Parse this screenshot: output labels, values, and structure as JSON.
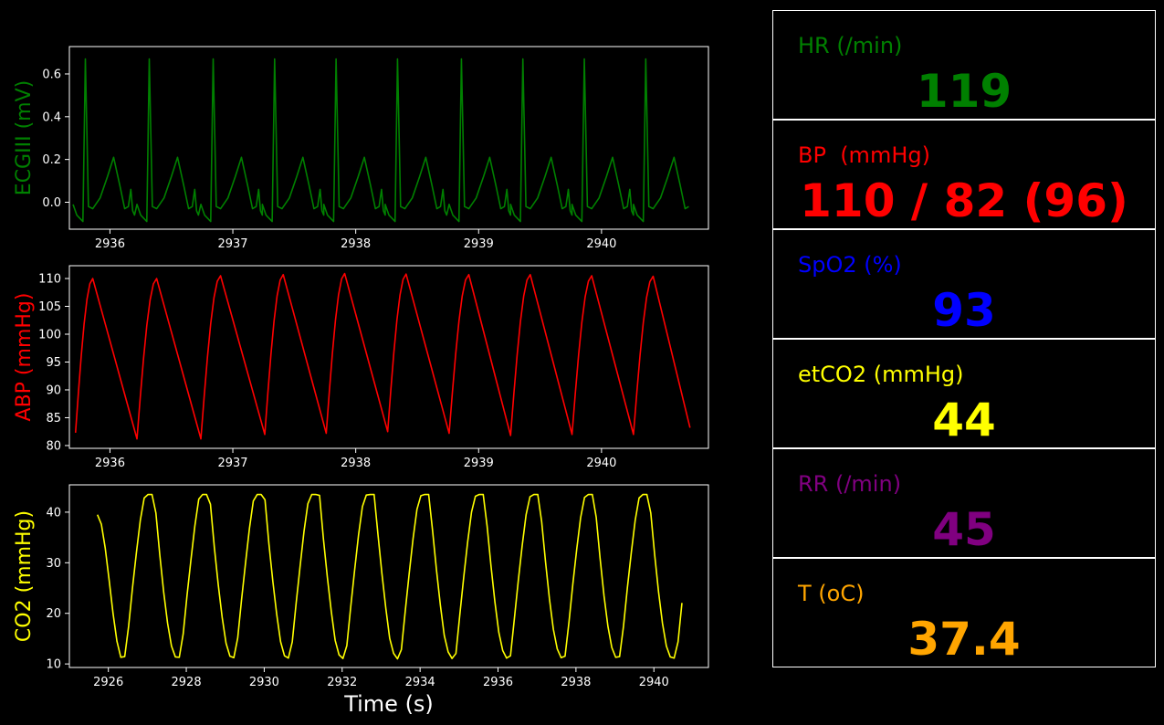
{
  "chart_data": [
    {
      "type": "line",
      "ylabel": "ECGIII (mV)",
      "color": "#008000",
      "xlim": [
        2935.67,
        2940.87
      ],
      "ylim": [
        -0.126,
        0.728
      ],
      "xticks": [
        2936,
        2937,
        2938,
        2939,
        2940
      ],
      "yticks": [
        0.0,
        0.2,
        0.4,
        0.6
      ],
      "beat_onsets": [
        2935.7,
        2936.22,
        2936.74,
        2937.24,
        2937.74,
        2938.24,
        2938.76,
        2939.26,
        2939.76,
        2940.26
      ],
      "beat_period": 0.5,
      "x_end": 2940.72,
      "y_range": [
        -0.09,
        0.67
      ],
      "series": [
        {
          "y": [
            -0.01,
            -0.06,
            -0.09,
            0.67,
            -0.02,
            -0.03,
            0.02,
            0.12,
            0.21,
            0.08,
            -0.03,
            -0.02,
            0.06,
            -0.04,
            -0.06
          ]
        }
      ]
    },
    {
      "type": "line",
      "ylabel": "ABP (mmHg)",
      "color": "#ff0000",
      "xlim": [
        2935.67,
        2940.87
      ],
      "ylim": [
        79.5,
        112.3
      ],
      "xticks": [
        2936,
        2937,
        2938,
        2939,
        2940
      ],
      "yticks": [
        80,
        85,
        90,
        95,
        100,
        105,
        110
      ],
      "peaks_x": [
        2935.86,
        2936.38,
        2936.9,
        2937.41,
        2937.91,
        2938.41,
        2938.92,
        2939.42,
        2939.92,
        2940.42
      ],
      "peaks_y": [
        110,
        110,
        110.5,
        110.7,
        110.9,
        110.8,
        110.7,
        110.7,
        110.5,
        110.4
      ],
      "troughs_x": [
        2935.72,
        2936.22,
        2936.74,
        2937.26,
        2937.76,
        2938.26,
        2938.76,
        2939.26,
        2939.76,
        2940.26
      ],
      "troughs_y": [
        82.3,
        81.2,
        81.2,
        82.0,
        82.2,
        82.5,
        82.2,
        81.8,
        82.0,
        82.0
      ],
      "end": [
        2940.72,
        83.2
      ]
    },
    {
      "type": "line",
      "ylabel": "CO2 (mmHg)",
      "xlabel": "Time (s)",
      "color": "#ffff00",
      "xlim": [
        2925,
        2941.4
      ],
      "ylim": [
        9.3,
        45.4
      ],
      "xticks": [
        2926,
        2928,
        2930,
        2932,
        2934,
        2936,
        2938,
        2940
      ],
      "yticks": [
        10,
        20,
        30,
        40
      ],
      "troughs_x": [
        2926.36,
        2927.78,
        2929.19,
        2930.6,
        2932.01,
        2933.42,
        2934.83,
        2936.24,
        2937.65,
        2939.06,
        2940.5
      ],
      "period": 1.41,
      "start": [
        2925.72,
        39.5
      ],
      "min_y": 11,
      "max_y": 43.5,
      "x_end": 2940.72
    }
  ],
  "vitals": [
    {
      "label": "HR (/min)",
      "value": "119",
      "color": "#008000"
    },
    {
      "label": "BP  (mmHg)",
      "value": "110 / 82 (96)",
      "color": "#ff0000"
    },
    {
      "label": "SpO2 (%)",
      "value": "93",
      "color": "#0000ff"
    },
    {
      "label": "etCO2 (mmHg)",
      "value": "44",
      "color": "#ffff00"
    },
    {
      "label": "RR (/min)",
      "value": "45",
      "color": "#800080"
    },
    {
      "label": "T (oC)",
      "value": "37.4",
      "color": "#ffa500"
    }
  ]
}
